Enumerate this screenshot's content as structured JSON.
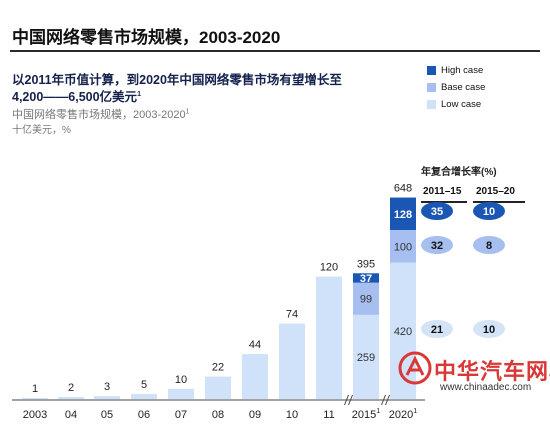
{
  "header": {
    "title": "中国网络零售市场规模，2003-2020"
  },
  "headline": {
    "line1": "以2011年币值计算，到2020年中国网络零售市场有望增长至",
    "line2": "4,200——6,500亿美元",
    "line2_sup": "1"
  },
  "subtitle": {
    "line1": "中国网络零售市场规模，2003-2020",
    "line1_sup": "1",
    "line2": "十亿美元，%"
  },
  "legend": {
    "items": [
      {
        "label": "High case",
        "color": "#1a56b3"
      },
      {
        "label": "Base case",
        "color": "#a6bff0"
      },
      {
        "label": "Low case",
        "color": "#cfe2fa"
      }
    ]
  },
  "cagr": {
    "title": "年复合增长率(%)",
    "col1": "2011–15",
    "col2": "2015–20"
  },
  "watermark": {
    "text": "中华汽车网校",
    "url": "www.chinaadec.com"
  },
  "colors": {
    "low": "#cfe2fa",
    "base": "#a6bff0",
    "high": "#1a56b3",
    "oval_high": "#1a56b3",
    "oval_base": "#a6bff0",
    "oval_low": "#d5e3f7",
    "axis": "#444444"
  },
  "chart_data": {
    "type": "bar",
    "stacked": true,
    "categories": [
      "2003",
      "04",
      "05",
      "06",
      "07",
      "08",
      "09",
      "10",
      "11",
      "2015",
      "2020"
    ],
    "category_sups": [
      "",
      "",
      "",
      "",
      "",
      "",
      "",
      "",
      "",
      "1",
      "1"
    ],
    "series": [
      {
        "name": "Low case",
        "values": [
          1,
          2,
          3,
          5,
          10,
          22,
          44,
          74,
          120,
          259,
          420
        ]
      },
      {
        "name": "Base case",
        "values": [
          0,
          0,
          0,
          0,
          0,
          0,
          0,
          0,
          0,
          99,
          100
        ]
      },
      {
        "name": "High case",
        "values": [
          0,
          0,
          0,
          0,
          0,
          0,
          0,
          0,
          0,
          37,
          128
        ]
      }
    ],
    "totals": [
      1,
      2,
      3,
      5,
      10,
      22,
      44,
      74,
      120,
      395,
      648
    ],
    "axis_break_after": [
      "11",
      "2015"
    ],
    "cagr": {
      "columns": [
        "2011–15",
        "2015–20"
      ],
      "rows": [
        {
          "scenario": "High case",
          "values": [
            35,
            10
          ]
        },
        {
          "scenario": "Base case",
          "values": [
            32,
            8
          ]
        },
        {
          "scenario": "Low case",
          "values": [
            21,
            10
          ]
        }
      ]
    }
  }
}
